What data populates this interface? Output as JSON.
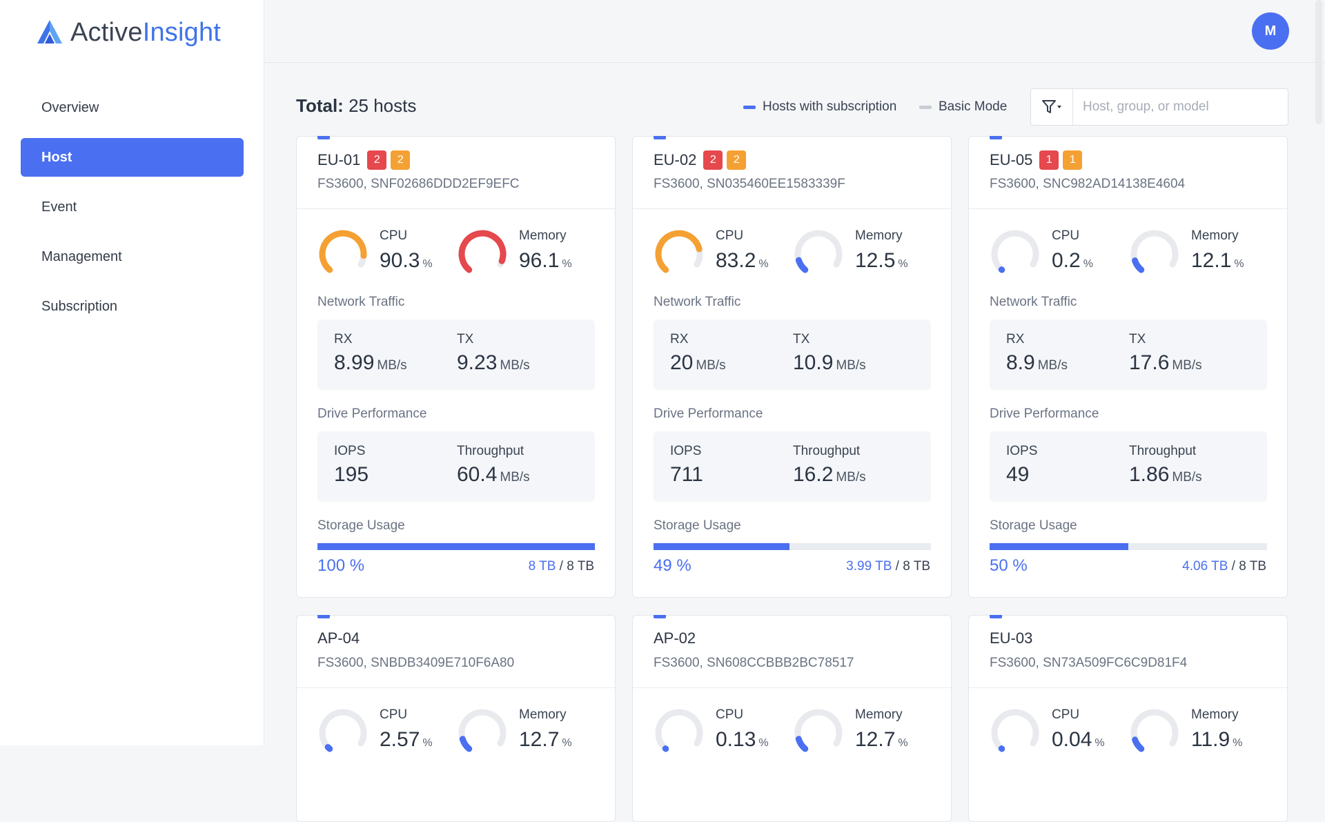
{
  "app": {
    "brand_a": "Active",
    "brand_b": "Insight",
    "avatar_initial": "M",
    "accent": "#4a6ff0"
  },
  "nav": {
    "items": [
      {
        "label": "Overview",
        "active": false
      },
      {
        "label": "Host",
        "active": true
      },
      {
        "label": "Event",
        "active": false
      },
      {
        "label": "Management",
        "active": false
      },
      {
        "label": "Subscription",
        "active": false
      }
    ]
  },
  "header": {
    "total_label": "Total:",
    "total_value": "25 hosts",
    "legend_subscription": "Hosts with subscription",
    "legend_basic": "Basic Mode",
    "filter_placeholder": "Host, group, or model"
  },
  "labels": {
    "cpu": "CPU",
    "memory": "Memory",
    "network": "Network Traffic",
    "rx": "RX",
    "tx": "TX",
    "drive": "Drive Performance",
    "iops": "IOPS",
    "throughput": "Throughput",
    "storage": "Storage Usage",
    "pct_unit": "%",
    "mbs": "MB/s"
  },
  "hosts": [
    {
      "name": "EU-01",
      "badge_red": "2",
      "badge_orange": "2",
      "model": "FS3600, SNF02686DDD2EF9EFC",
      "cpu": "90.3",
      "cpu_color": "#f5a033",
      "memory": "96.1",
      "mem_color": "#e5484d",
      "rx": "8.99",
      "tx": "9.23",
      "iops": "195",
      "throughput": "60.4",
      "storage_pct": 100,
      "storage_pct_label": "100 %",
      "used": "8 TB",
      "total": "/ 8 TB"
    },
    {
      "name": "EU-02",
      "badge_red": "2",
      "badge_orange": "2",
      "model": "FS3600, SN035460EE1583339F",
      "cpu": "83.2",
      "cpu_color": "#f5a033",
      "memory": "12.5",
      "mem_color": "#4a6ff0",
      "rx": "20",
      "tx": "10.9",
      "iops": "711",
      "throughput": "16.2",
      "storage_pct": 49,
      "storage_pct_label": "49 %",
      "used": "3.99 TB",
      "total": "/ 8 TB"
    },
    {
      "name": "EU-05",
      "badge_red": "1",
      "badge_orange": "1",
      "model": "FS3600, SNC982AD14138E4604",
      "cpu": "0.2",
      "cpu_color": "#4a6ff0",
      "memory": "12.1",
      "mem_color": "#4a6ff0",
      "rx": "8.9",
      "tx": "17.6",
      "iops": "49",
      "throughput": "1.86",
      "storage_pct": 50,
      "storage_pct_label": "50 %",
      "used": "4.06 TB",
      "total": "/ 8 TB"
    },
    {
      "name": "AP-04",
      "model": "FS3600, SNBDB3409E710F6A80",
      "cpu": "2.57",
      "cpu_color": "#4a6ff0",
      "memory": "12.7",
      "mem_color": "#4a6ff0"
    },
    {
      "name": "AP-02",
      "model": "FS3600, SN608CCBBB2BC78517",
      "cpu": "0.13",
      "cpu_color": "#4a6ff0",
      "memory": "12.7",
      "mem_color": "#4a6ff0"
    },
    {
      "name": "EU-03",
      "model": "FS3600, SN73A509FC6C9D81F4",
      "cpu": "0.04",
      "cpu_color": "#4a6ff0",
      "memory": "11.9",
      "mem_color": "#4a6ff0"
    }
  ]
}
